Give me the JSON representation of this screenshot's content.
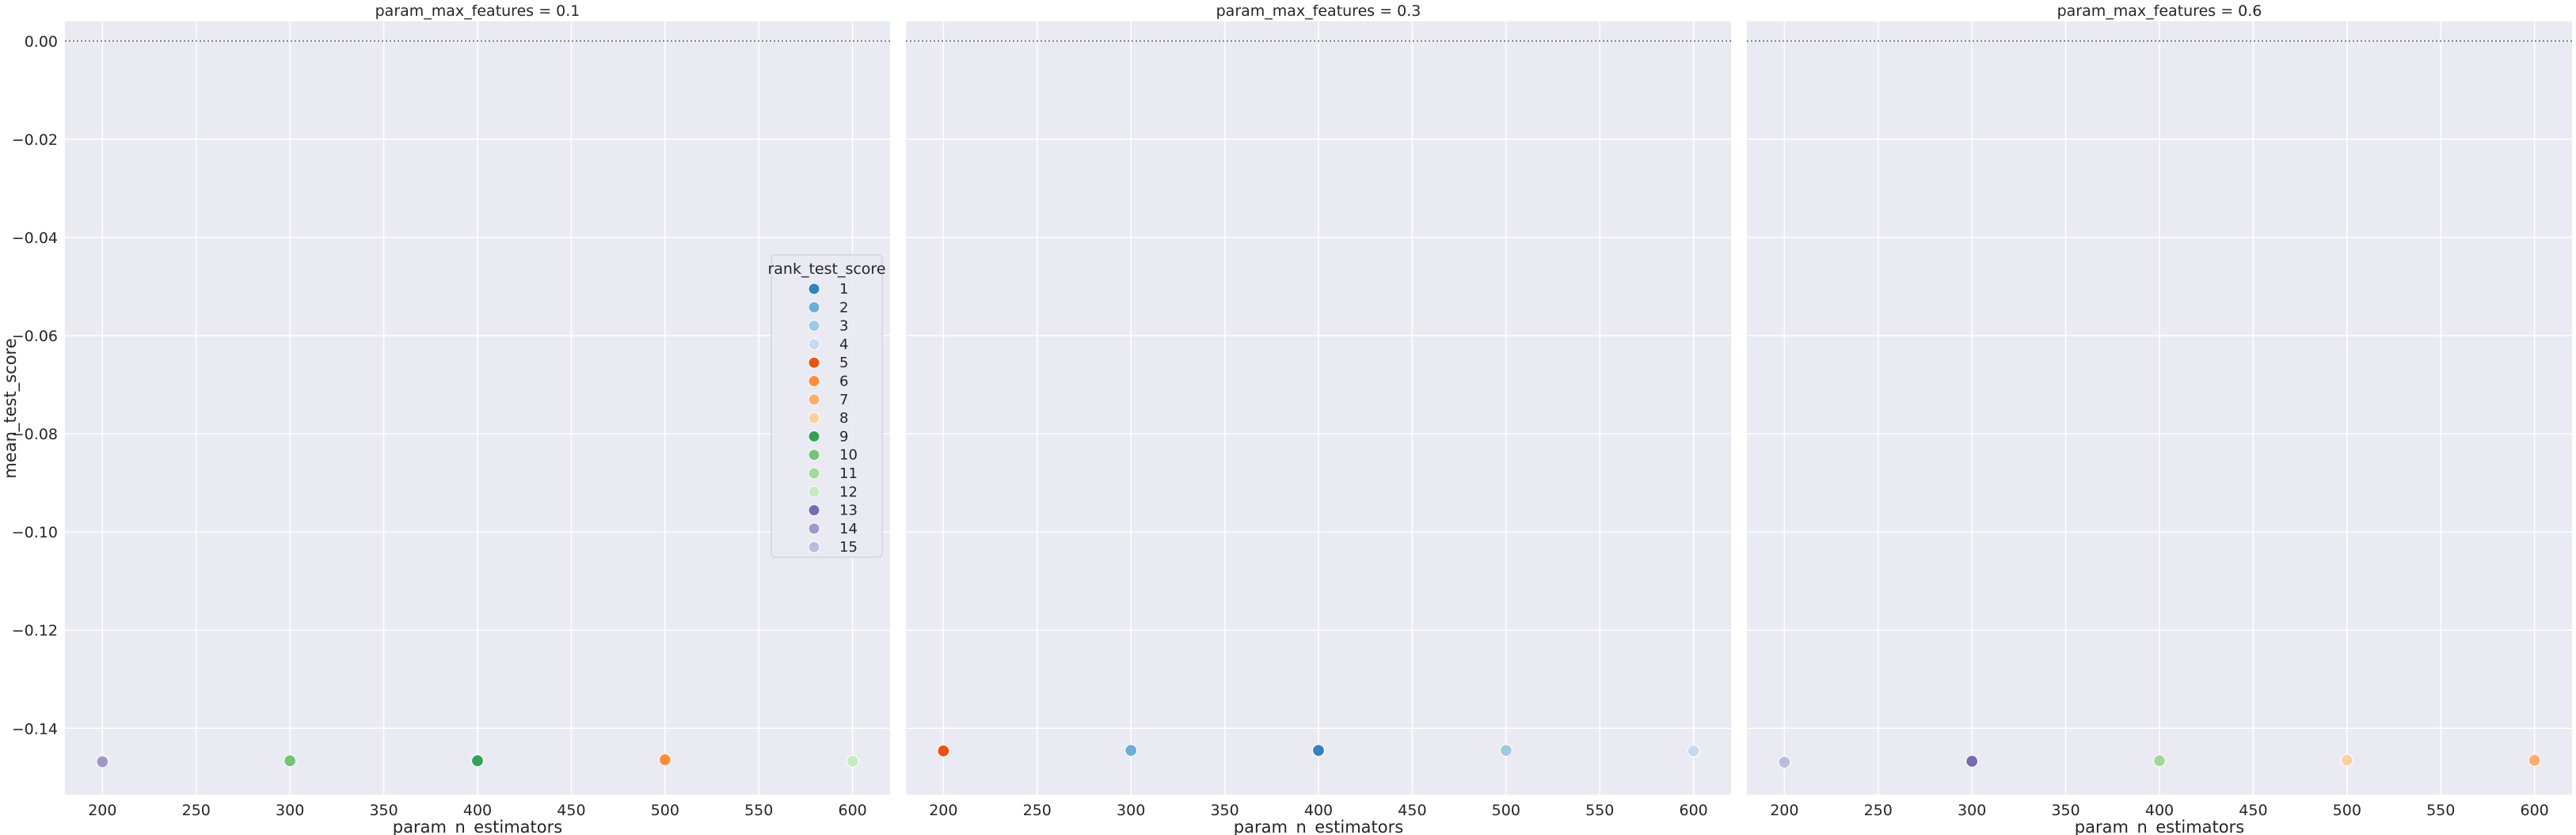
{
  "chart_data": {
    "type": "scatter",
    "facet_variable": "param_max_features",
    "xlabel": "param_n_estimators",
    "ylabel": "mean_test_score",
    "xlim": [
      180,
      620
    ],
    "ylim": [
      -0.1535,
      0.004
    ],
    "xticks": [
      200,
      250,
      300,
      350,
      400,
      450,
      500,
      550,
      600
    ],
    "yticks": [
      0.0,
      -0.02,
      -0.04,
      -0.06,
      -0.08,
      -0.1,
      -0.12,
      -0.14
    ],
    "ytick_labels": [
      "0.00",
      "−0.02",
      "−0.04",
      "−0.06",
      "−0.08",
      "−0.10",
      "−0.12",
      "−0.14"
    ],
    "reference_line_y": 0.0,
    "grid": true,
    "legend": {
      "title": "rank_test_score",
      "placement": "right of first panel",
      "entries": [
        {
          "rank": "1",
          "color": "#3182bd"
        },
        {
          "rank": "2",
          "color": "#6baed6"
        },
        {
          "rank": "3",
          "color": "#9ecae1"
        },
        {
          "rank": "4",
          "color": "#c6dbef"
        },
        {
          "rank": "5",
          "color": "#e6550d"
        },
        {
          "rank": "6",
          "color": "#fd8d3c"
        },
        {
          "rank": "7",
          "color": "#fdae6b"
        },
        {
          "rank": "8",
          "color": "#fdd0a2"
        },
        {
          "rank": "9",
          "color": "#31a354"
        },
        {
          "rank": "10",
          "color": "#74c476"
        },
        {
          "rank": "11",
          "color": "#a1d99b"
        },
        {
          "rank": "12",
          "color": "#c7e9c0"
        },
        {
          "rank": "13",
          "color": "#756bb1"
        },
        {
          "rank": "14",
          "color": "#9e9ac8"
        },
        {
          "rank": "15",
          "color": "#bcbddc"
        }
      ]
    },
    "panels": [
      {
        "title": "param_max_features = 0.1",
        "points": [
          {
            "x": 200,
            "y": -0.1468,
            "rank": "14"
          },
          {
            "x": 300,
            "y": -0.1466,
            "rank": "10"
          },
          {
            "x": 400,
            "y": -0.1466,
            "rank": "9"
          },
          {
            "x": 500,
            "y": -0.1464,
            "rank": "6"
          },
          {
            "x": 600,
            "y": -0.1467,
            "rank": "12"
          }
        ]
      },
      {
        "title": "param_max_features = 0.3",
        "points": [
          {
            "x": 200,
            "y": -0.1446,
            "rank": "5"
          },
          {
            "x": 300,
            "y": -0.1445,
            "rank": "2"
          },
          {
            "x": 400,
            "y": -0.1445,
            "rank": "1"
          },
          {
            "x": 500,
            "y": -0.1445,
            "rank": "3"
          },
          {
            "x": 600,
            "y": -0.1446,
            "rank": "4"
          }
        ]
      },
      {
        "title": "param_max_features = 0.6",
        "points": [
          {
            "x": 200,
            "y": -0.1469,
            "rank": "15"
          },
          {
            "x": 300,
            "y": -0.1467,
            "rank": "13"
          },
          {
            "x": 400,
            "y": -0.1466,
            "rank": "11"
          },
          {
            "x": 500,
            "y": -0.1465,
            "rank": "8"
          },
          {
            "x": 600,
            "y": -0.1465,
            "rank": "7"
          }
        ]
      }
    ]
  }
}
